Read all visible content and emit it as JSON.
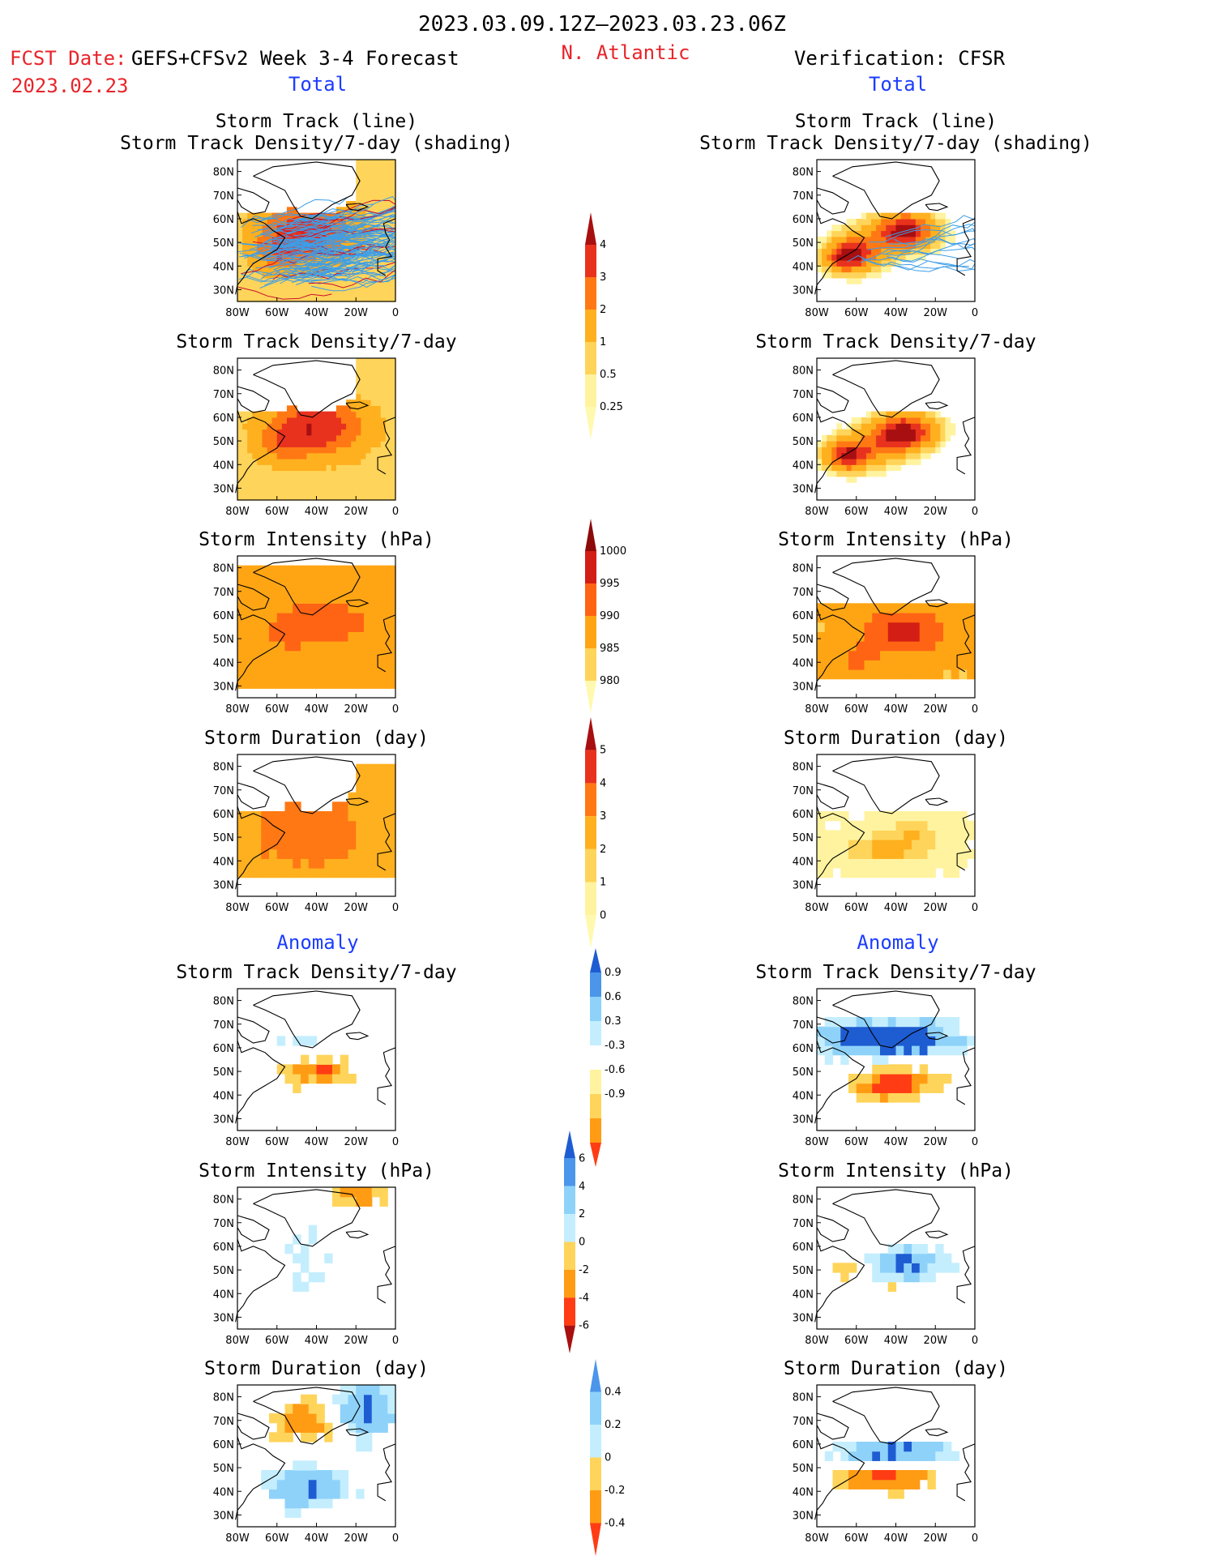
{
  "header": {
    "period": "2023.03.09.12Z–2023.03.23.06Z",
    "fcst_prefix": "FCST Date:",
    "fcst_model": "GEFS+CFSv2 Week 3-4 Forecast",
    "fcst_date": "2023.02.23",
    "region": "N. Atlantic",
    "verification": "Verification: CFSR"
  },
  "sections": {
    "total": "Total",
    "anomaly": "Anomaly"
  },
  "colors": {
    "red_text": "#e8242a",
    "blue_text": "#1c3cff",
    "track_line": "#3c9ee8",
    "track_line_red": "#c8102e"
  },
  "chart_data": {
    "type": "heatmap",
    "map_extent": {
      "lon": [
        -80,
        0
      ],
      "lat": [
        25,
        85
      ]
    },
    "lon_ticks": [
      "80W",
      "60W",
      "40W",
      "20W",
      "0"
    ],
    "lat_ticks": [
      "30N",
      "40N",
      "50N",
      "60N",
      "70N",
      "80N"
    ],
    "rows": [
      {
        "id": "track",
        "title1": "Storm Track (line)",
        "title2": "Storm Track Density/7-day (shading)",
        "colorbar": "density"
      },
      {
        "id": "density",
        "title1": "",
        "title2": "Storm Track Density/7-day",
        "colorbar": ""
      },
      {
        "id": "intensity",
        "title1": "",
        "title2": "Storm Intensity (hPa)",
        "colorbar": "intensity"
      },
      {
        "id": "duration",
        "title1": "",
        "title2": "Storm Duration (day)",
        "colorbar": "duration"
      },
      {
        "id": "a_density",
        "title1": "",
        "title2": "Storm Track Density/7-day",
        "colorbar": "a_density"
      },
      {
        "id": "a_intensity",
        "title1": "",
        "title2": "Storm Intensity (hPa)",
        "colorbar": "a_intensity"
      },
      {
        "id": "a_duration",
        "title1": "",
        "title2": "Storm Duration (day)",
        "colorbar": "a_duration"
      }
    ],
    "colorbars": {
      "density": {
        "labels": [
          "0.25",
          "0.5",
          "1",
          "2",
          "3",
          "4"
        ],
        "colors": [
          "#fff9b0",
          "#fff3a0",
          "#ffd45a",
          "#ffb01e",
          "#ff7814",
          "#e8321e",
          "#a80f10"
        ]
      },
      "intensity": {
        "labels": [
          "1000",
          "995",
          "990",
          "985",
          "980"
        ],
        "colors": [
          "#fff9b0",
          "#ffd45a",
          "#ffa514",
          "#ff6414",
          "#d21e14",
          "#8c0a0a"
        ]
      },
      "duration": {
        "labels": [
          "0",
          "1",
          "2",
          "3",
          "4",
          "5"
        ],
        "colors": [
          "#fff9b0",
          "#fff3a0",
          "#ffd45a",
          "#ffb01e",
          "#ff7814",
          "#e8321e",
          "#a80f10"
        ]
      },
      "a_density": {
        "labels": [
          "0.9",
          "0.6",
          "0.3",
          "-0.3",
          "-0.6",
          "-0.9"
        ],
        "colors": [
          "#ff3c14",
          "#ff9c14",
          "#ffd45a",
          "#fff3a0",
          "#ffffff",
          "#c4eefe",
          "#8ed2fa",
          "#4b96ea",
          "#1e5cd2"
        ]
      },
      "a_intensity": {
        "labels": [
          "6",
          "4",
          "2",
          "0",
          "-2",
          "-4",
          "-6"
        ],
        "colors": [
          "#a80f10",
          "#ff3c14",
          "#ff9c14",
          "#ffd45a",
          "#c4eefe",
          "#8ed2fa",
          "#4b96ea",
          "#1e5cd2"
        ]
      },
      "a_duration": {
        "labels": [
          "0.4",
          "0.2",
          "0",
          "-0.2",
          "-0.4"
        ],
        "colors": [
          "#ff3c14",
          "#ff9c14",
          "#ffd45a",
          "#c4eefe",
          "#8ed2fa",
          "#4b96ea"
        ]
      }
    }
  }
}
